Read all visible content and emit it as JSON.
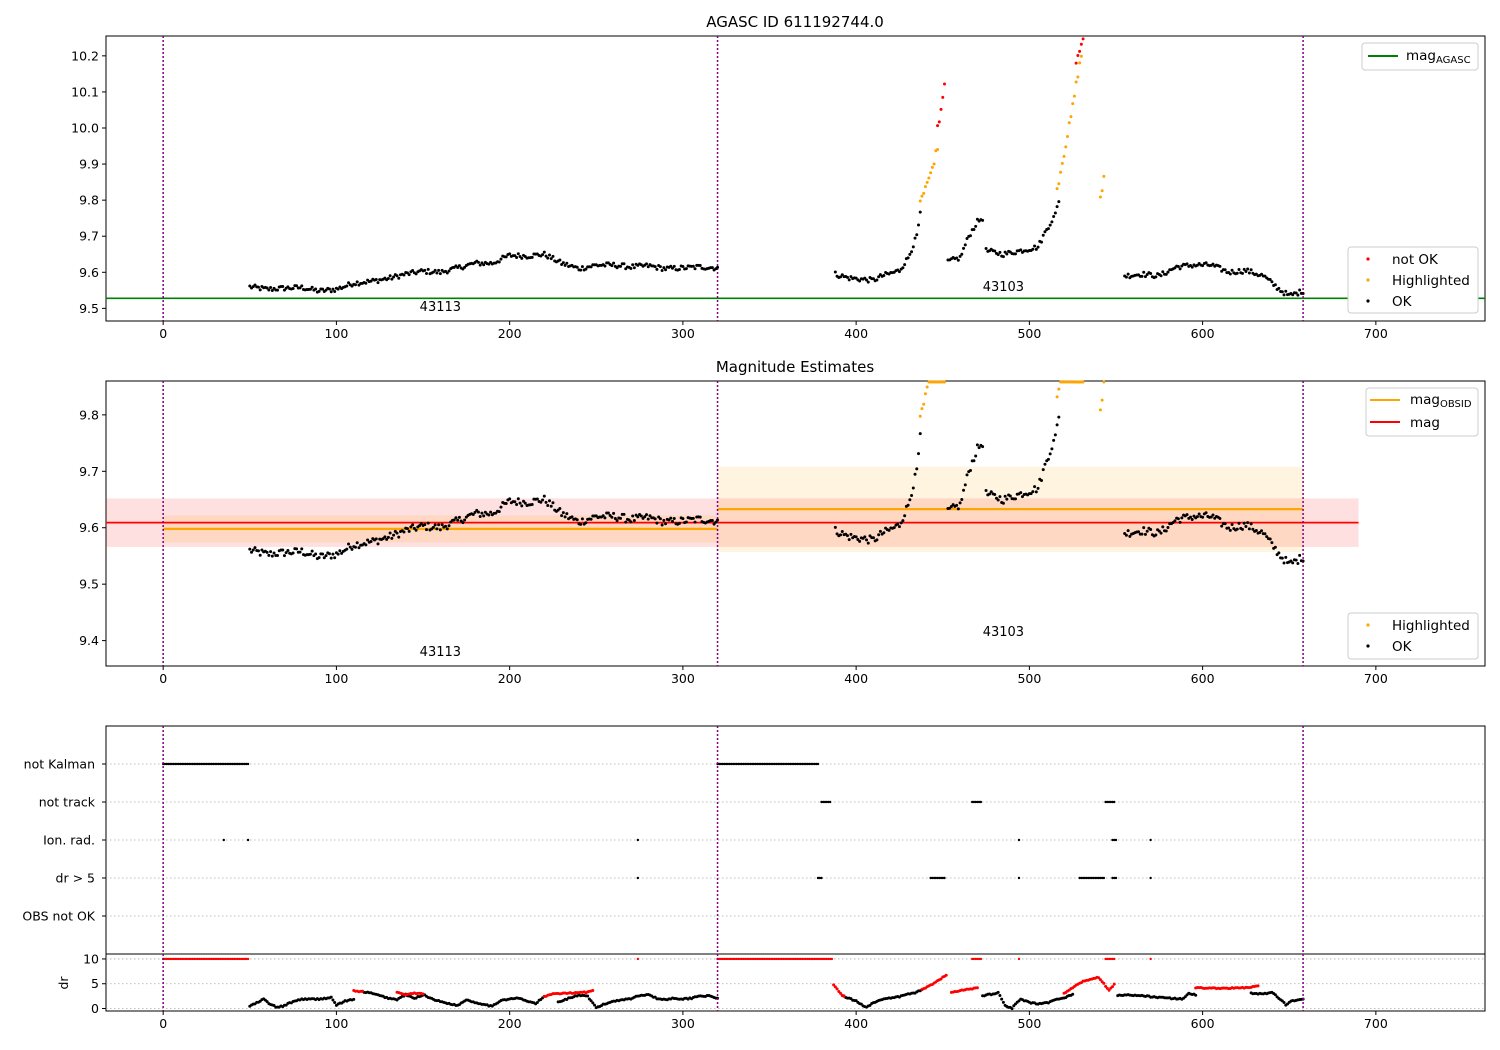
{
  "chart_data": [
    {
      "type": "scatter",
      "title": "AGASC ID 611192744.0",
      "xlim": [
        -33,
        763
      ],
      "ylim": [
        9.465,
        10.255
      ],
      "x_ticks": [
        "0",
        "100",
        "200",
        "300",
        "400",
        "500",
        "600",
        "700"
      ],
      "y_ticks": [
        "9.5",
        "9.6",
        "9.7",
        "9.8",
        "9.9",
        "10.0",
        "10.1",
        "10.2"
      ],
      "obsid_boundaries": [
        0,
        320,
        658
      ],
      "annotations": [
        {
          "text": "43113",
          "x": 160
        },
        {
          "text": "43103",
          "x": 485
        }
      ],
      "hlines": [
        {
          "name": "mag_AGASC",
          "value": 9.528,
          "color": "#008000"
        }
      ],
      "legend_top_right": "mag_AGASC",
      "legend_bottom_right": [
        "not OK",
        "Highlighted",
        "OK"
      ],
      "colors": {
        "ok": "#000000",
        "highlighted": "#ffa500",
        "not_ok": "#ff0000",
        "boundary": "#800080"
      }
    },
    {
      "type": "scatter",
      "title": "Magnitude Estimates",
      "xlim": [
        -33,
        763
      ],
      "ylim": [
        9.355,
        9.86
      ],
      "x_ticks": [
        "0",
        "100",
        "200",
        "300",
        "400",
        "500",
        "600",
        "700"
      ],
      "y_ticks": [
        "9.4",
        "9.5",
        "9.6",
        "9.7",
        "9.8"
      ],
      "obsid_boundaries": [
        0,
        320,
        658
      ],
      "annotations": [
        {
          "text": "43113",
          "x": 160
        },
        {
          "text": "43103",
          "x": 485
        }
      ],
      "obsid_mags": [
        {
          "x_start": 0,
          "x_end": 320,
          "value": 9.598,
          "band": [
            9.574,
            9.622
          ]
        },
        {
          "x_start": 320,
          "x_end": 658,
          "value": 9.633,
          "band": [
            9.557,
            9.708
          ]
        }
      ],
      "mag": {
        "x_start": 0,
        "x_end": 690,
        "value": 9.609,
        "band": [
          9.566,
          9.652
        ]
      },
      "legend_top_right": [
        "mag_OBSID",
        "mag"
      ],
      "legend_bottom_right": [
        "Highlighted",
        "OK"
      ],
      "colors": {
        "obsid": "#ffa500",
        "mag": "#ff0000"
      }
    },
    {
      "type": "scatter",
      "title": "",
      "xlim": [
        -33,
        763
      ],
      "x_ticks": [
        "0",
        "100",
        "200",
        "300",
        "400",
        "500",
        "600",
        "700"
      ],
      "flag_rows": [
        "not Kalman",
        "not track",
        "Ion. rad.",
        "dr > 5",
        "OBS not OK"
      ],
      "dr_ylim": [
        -0.5,
        11
      ],
      "dr_y_ticks": [
        "0",
        "5",
        "10"
      ],
      "dr_ylabel": "dr",
      "obsid_boundaries": [
        0,
        320,
        658
      ]
    }
  ],
  "series_ranges": {
    "mag_ok": [
      {
        "x_start": 50,
        "x_end": 320,
        "points": [
          [
            50,
            9.56
          ],
          [
            60,
            9.553
          ],
          [
            70,
            9.556
          ],
          [
            80,
            9.558
          ],
          [
            90,
            9.548
          ],
          [
            100,
            9.553
          ],
          [
            110,
            9.57
          ],
          [
            120,
            9.575
          ],
          [
            130,
            9.583
          ],
          [
            140,
            9.595
          ],
          [
            150,
            9.603
          ],
          [
            160,
            9.6
          ],
          [
            170,
            9.612
          ],
          [
            180,
            9.625
          ],
          [
            190,
            9.625
          ],
          [
            200,
            9.647
          ],
          [
            210,
            9.645
          ],
          [
            220,
            9.65
          ],
          [
            230,
            9.625
          ],
          [
            240,
            9.61
          ],
          [
            250,
            9.62
          ],
          [
            260,
            9.62
          ],
          [
            270,
            9.615
          ],
          [
            280,
            9.618
          ],
          [
            290,
            9.61
          ],
          [
            300,
            9.612
          ],
          [
            310,
            9.615
          ],
          [
            320,
            9.612
          ]
        ]
      },
      {
        "x_start": 388,
        "x_end": 437,
        "points": [
          [
            388,
            9.595
          ],
          [
            395,
            9.585
          ],
          [
            400,
            9.582
          ],
          [
            405,
            9.58
          ],
          [
            410,
            9.578
          ],
          [
            415,
            9.59
          ],
          [
            420,
            9.597
          ],
          [
            425,
            9.605
          ],
          [
            430,
            9.64
          ],
          [
            435,
            9.7
          ],
          [
            437,
            9.76
          ]
        ]
      },
      {
        "x_start": 453,
        "x_end": 473,
        "points": [
          [
            453,
            9.63
          ],
          [
            460,
            9.64
          ],
          [
            465,
            9.7
          ],
          [
            470,
            9.74
          ],
          [
            473,
            9.75
          ]
        ]
      },
      {
        "x_start": 475,
        "x_end": 517,
        "points": [
          [
            475,
            9.66
          ],
          [
            485,
            9.65
          ],
          [
            495,
            9.66
          ],
          [
            505,
            9.67
          ],
          [
            510,
            9.72
          ],
          [
            515,
            9.76
          ],
          [
            517,
            9.8
          ]
        ]
      },
      {
        "x_start": 555,
        "x_end": 658,
        "points": [
          [
            555,
            9.59
          ],
          [
            565,
            9.595
          ],
          [
            575,
            9.59
          ],
          [
            585,
            9.615
          ],
          [
            595,
            9.62
          ],
          [
            605,
            9.62
          ],
          [
            615,
            9.6
          ],
          [
            625,
            9.605
          ],
          [
            635,
            9.59
          ],
          [
            645,
            9.55
          ],
          [
            650,
            9.535
          ],
          [
            658,
            9.548
          ]
        ]
      }
    ],
    "mag_highlighted": [
      {
        "x_start": 437,
        "x_end": 447,
        "points": [
          [
            437,
            9.8
          ],
          [
            440,
            9.84
          ],
          [
            443,
            9.87
          ],
          [
            445,
            9.91
          ],
          [
            447,
            9.95
          ]
        ]
      },
      {
        "x_start": 516,
        "x_end": 530,
        "points": [
          [
            516,
            9.83
          ],
          [
            518,
            9.88
          ],
          [
            520,
            9.93
          ],
          [
            522,
            9.98
          ],
          [
            524,
            10.03
          ],
          [
            526,
            10.09
          ],
          [
            528,
            10.15
          ],
          [
            530,
            10.2
          ]
        ]
      },
      {
        "x_start": 541,
        "x_end": 543,
        "points": [
          [
            541,
            9.81
          ],
          [
            542,
            9.83
          ],
          [
            543,
            9.86
          ]
        ]
      }
    ],
    "mag_not_ok": [
      {
        "x_start": 447,
        "x_end": 451,
        "points": [
          [
            447,
            10.0
          ],
          [
            448,
            10.02
          ],
          [
            449,
            10.05
          ],
          [
            450,
            10.09
          ],
          [
            451,
            10.12
          ]
        ]
      },
      {
        "x_start": 527,
        "x_end": 531,
        "points": [
          [
            527,
            10.18
          ],
          [
            528,
            10.2
          ],
          [
            529,
            10.22
          ],
          [
            531,
            10.25
          ]
        ]
      }
    ],
    "flags": {
      "not Kalman": [
        [
          0,
          49
        ],
        [
          320,
          378
        ]
      ],
      "not track": [
        [
          380,
          385
        ],
        [
          467,
          472
        ],
        [
          544,
          549
        ]
      ],
      "Ion. rad.": [
        [
          35,
          35
        ],
        [
          49,
          49
        ],
        [
          274,
          274
        ],
        [
          494,
          494
        ],
        [
          548,
          550
        ],
        [
          570,
          570
        ]
      ],
      "dr > 5": [
        [
          274,
          274
        ],
        [
          378,
          380
        ],
        [
          443,
          451
        ],
        [
          494,
          494
        ],
        [
          529,
          543
        ],
        [
          548,
          550
        ],
        [
          570,
          570
        ]
      ],
      "OBS not OK": []
    },
    "dr_red_top": [
      [
        0,
        49
      ],
      [
        274,
        274
      ],
      [
        320,
        386
      ],
      [
        467,
        472
      ],
      [
        494,
        494
      ],
      [
        544,
        549
      ],
      [
        570,
        570
      ]
    ],
    "dr_ok": [
      {
        "points": [
          [
            50,
            0.5
          ],
          [
            55,
            1.3
          ],
          [
            58,
            1.9
          ],
          [
            62,
            0.8
          ],
          [
            66,
            0.2
          ],
          [
            70,
            0.6
          ],
          [
            75,
            1.4
          ],
          [
            80,
            1.9
          ],
          [
            90,
            1.9
          ],
          [
            97,
            2.2
          ],
          [
            100,
            0.7
          ],
          [
            105,
            1.5
          ],
          [
            110,
            1.8
          ]
        ]
      },
      {
        "points": [
          [
            115,
            3.4
          ],
          [
            120,
            3.1
          ],
          [
            125,
            2.6
          ],
          [
            130,
            2.1
          ],
          [
            135,
            1.8
          ],
          [
            140,
            2.8
          ],
          [
            145,
            2.0
          ],
          [
            150,
            2.8
          ],
          [
            155,
            2.0
          ],
          [
            160,
            1.4
          ],
          [
            165,
            1.0
          ],
          [
            170,
            0.6
          ],
          [
            175,
            1.8
          ],
          [
            180,
            1.2
          ],
          [
            185,
            0.9
          ],
          [
            190,
            0.4
          ],
          [
            195,
            1.7
          ],
          [
            200,
            1.9
          ],
          [
            205,
            2.1
          ],
          [
            210,
            1.5
          ],
          [
            215,
            1.0
          ],
          [
            220,
            2.4
          ]
        ]
      },
      {
        "points": [
          [
            228,
            1.3
          ],
          [
            232,
            1.8
          ],
          [
            236,
            2.3
          ],
          [
            240,
            2.7
          ],
          [
            245,
            2.4
          ],
          [
            250,
            0.2
          ],
          [
            255,
            0.9
          ],
          [
            260,
            1.5
          ],
          [
            265,
            1.8
          ],
          [
            270,
            2.0
          ],
          [
            275,
            2.6
          ],
          [
            280,
            2.9
          ],
          [
            285,
            2.0
          ],
          [
            290,
            1.8
          ],
          [
            295,
            2.1
          ],
          [
            300,
            1.9
          ],
          [
            305,
            2.1
          ],
          [
            310,
            2.6
          ],
          [
            315,
            2.5
          ],
          [
            320,
            2.1
          ]
        ]
      },
      {
        "points": [
          [
            392,
            2.6
          ],
          [
            396,
            2.0
          ],
          [
            400,
            1.5
          ],
          [
            403,
            0.8
          ],
          [
            406,
            0.3
          ],
          [
            410,
            1.2
          ],
          [
            415,
            1.8
          ],
          [
            420,
            2.1
          ],
          [
            425,
            2.4
          ],
          [
            430,
            2.9
          ],
          [
            435,
            3.3
          ],
          [
            438,
            3.8
          ]
        ]
      },
      {
        "points": [
          [
            473,
            2.6
          ],
          [
            478,
            2.9
          ],
          [
            482,
            3.2
          ],
          [
            486,
            0.6
          ],
          [
            490,
            0.1
          ],
          [
            495,
            1.9
          ],
          [
            500,
            1.2
          ],
          [
            505,
            0.9
          ],
          [
            510,
            1.1
          ],
          [
            515,
            1.7
          ],
          [
            520,
            2.2
          ],
          [
            525,
            2.8
          ]
        ]
      },
      {
        "points": [
          [
            551,
            2.7
          ],
          [
            560,
            2.7
          ],
          [
            570,
            2.4
          ],
          [
            580,
            2.1
          ],
          [
            588,
            1.9
          ],
          [
            592,
            3.0
          ],
          [
            596,
            2.8
          ]
        ]
      },
      {
        "points": [
          [
            628,
            3.1
          ],
          [
            635,
            2.9
          ],
          [
            640,
            3.3
          ],
          [
            648,
            0.8
          ],
          [
            652,
            1.6
          ],
          [
            658,
            2.0
          ]
        ]
      }
    ],
    "dr_red": [
      {
        "points": [
          [
            110,
            3.6
          ],
          [
            115,
            3.4
          ]
        ]
      },
      {
        "points": [
          [
            135,
            3.2
          ],
          [
            140,
            2.8
          ],
          [
            145,
            3.1
          ],
          [
            150,
            2.9
          ]
        ]
      },
      {
        "points": [
          [
            220,
            2.4
          ],
          [
            224,
            2.9
          ],
          [
            245,
            3.3
          ],
          [
            248,
            3.7
          ]
        ]
      },
      {
        "points": [
          [
            387,
            4.8
          ],
          [
            390,
            3.5
          ],
          [
            393,
            2.4
          ]
        ]
      },
      {
        "points": [
          [
            438,
            3.8
          ],
          [
            442,
            4.5
          ],
          [
            446,
            5.3
          ],
          [
            450,
            6.3
          ],
          [
            452,
            6.7
          ]
        ]
      },
      {
        "points": [
          [
            455,
            3.2
          ],
          [
            460,
            3.6
          ],
          [
            465,
            3.9
          ],
          [
            470,
            4.1
          ]
        ]
      },
      {
        "points": [
          [
            520,
            3.0
          ],
          [
            525,
            4.2
          ],
          [
            530,
            5.3
          ],
          [
            535,
            5.9
          ],
          [
            540,
            6.3
          ],
          [
            543,
            5.0
          ],
          [
            546,
            3.6
          ],
          [
            549,
            4.9
          ]
        ]
      },
      {
        "points": [
          [
            596,
            4.2
          ],
          [
            605,
            4.1
          ],
          [
            615,
            4.1
          ],
          [
            625,
            4.2
          ],
          [
            632,
            4.5
          ]
        ]
      }
    ]
  }
}
